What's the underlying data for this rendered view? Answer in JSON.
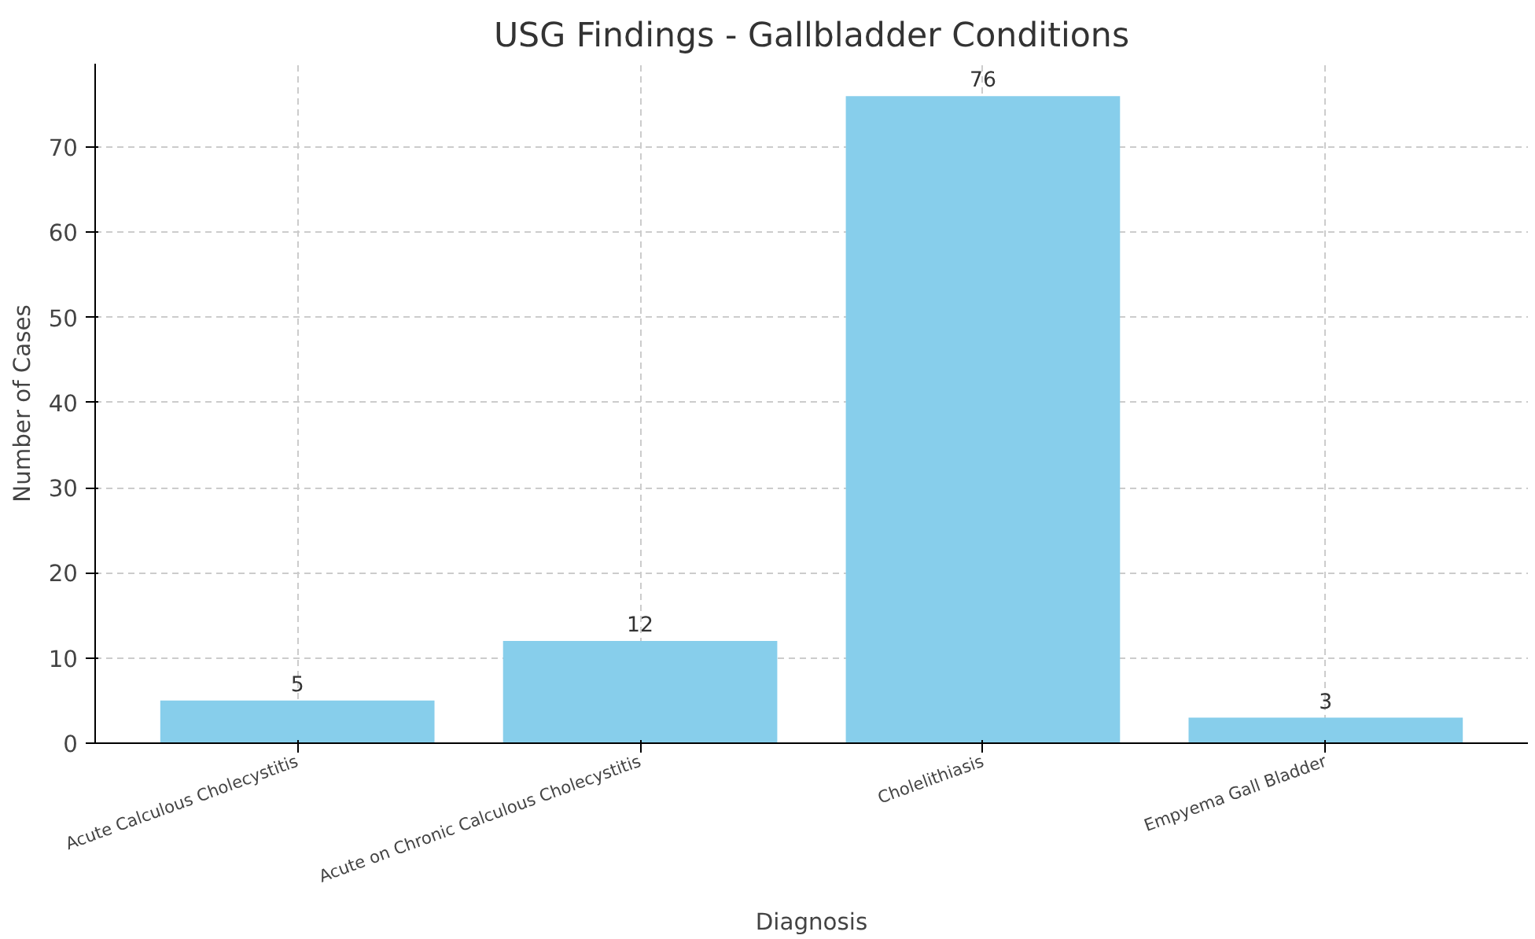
{
  "chart_data": {
    "type": "bar",
    "title": "USG Findings - Gallbladder Conditions",
    "xlabel": "Diagnosis",
    "ylabel": "Number of Cases",
    "categories": [
      "Acute Calculous Cholecystitis",
      "Acute on Chronic Calculous Cholecystitis",
      "Cholelithiasis",
      "Empyema Gall Bladder"
    ],
    "values": [
      5,
      12,
      76,
      3
    ],
    "color": "#87ceeb",
    "ylim": [
      0,
      79.8
    ],
    "yticks": [
      0,
      10,
      20,
      30,
      40,
      50,
      60,
      70
    ],
    "grid": true,
    "data_labels": true
  }
}
